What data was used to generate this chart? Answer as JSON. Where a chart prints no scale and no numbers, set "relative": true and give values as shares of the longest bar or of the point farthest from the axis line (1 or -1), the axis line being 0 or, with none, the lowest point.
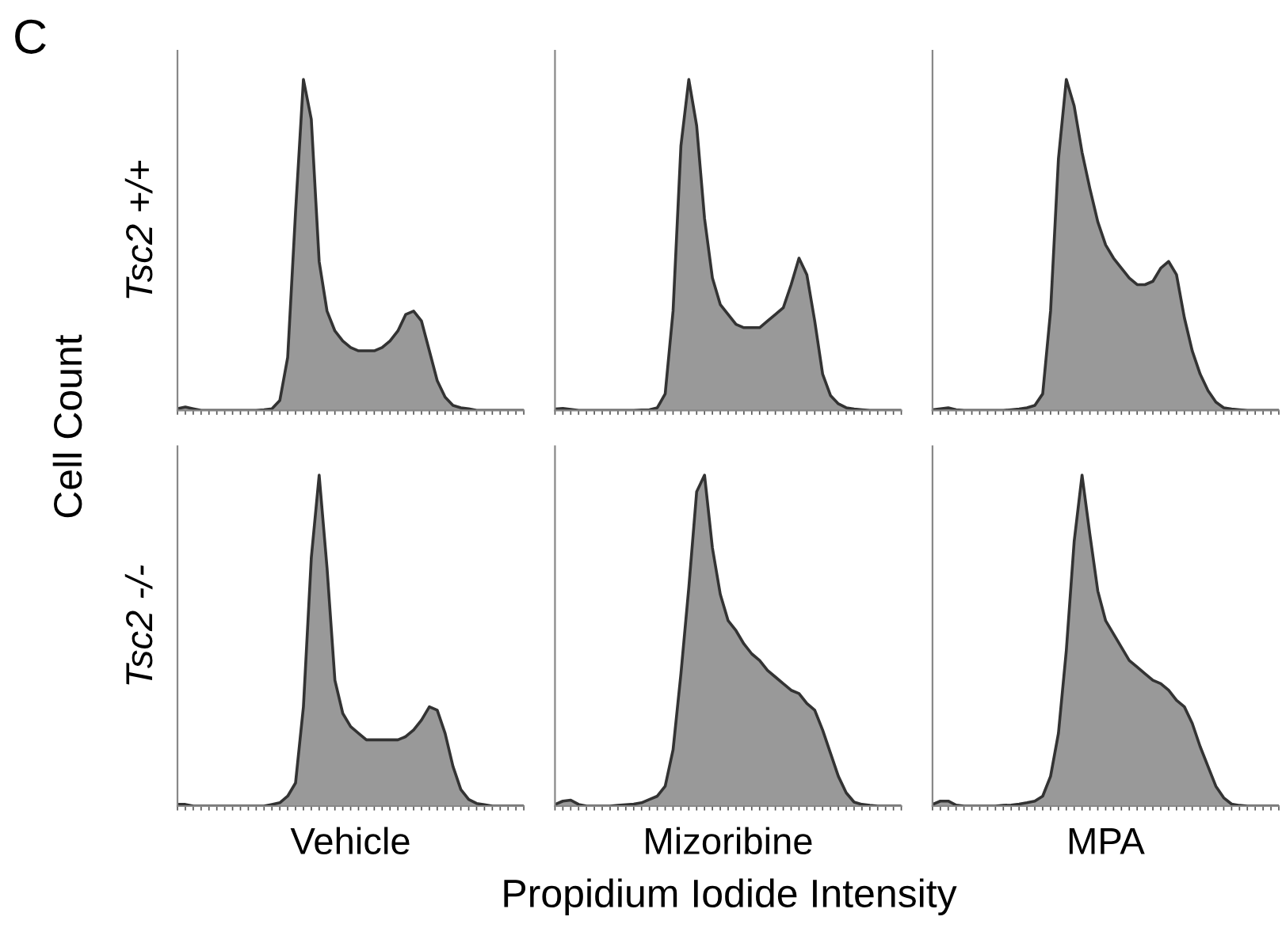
{
  "chart_data": [
    {
      "type": "area",
      "relative": true,
      "ylabel": "Tsc2 +/+",
      "color": "#999999",
      "annotations": [
        "C",
        "Cell Count",
        "Propidium Iodide Intensity"
      ],
      "categories": [
        null,
        null,
        null,
        null,
        null,
        null,
        null,
        null,
        null,
        null,
        null,
        null,
        null,
        null,
        null,
        null,
        null,
        null,
        null,
        null,
        null,
        null,
        null,
        null,
        null,
        null,
        null,
        null,
        null,
        null,
        null,
        null,
        null,
        null,
        null,
        null,
        null,
        null,
        null,
        null,
        null,
        null,
        null,
        null,
        null
      ],
      "values": [
        0.005,
        0.01,
        0.005,
        0,
        0,
        0,
        0,
        0,
        0,
        0,
        0,
        0.002,
        0.005,
        0.03,
        0.16,
        0.6,
        1,
        0.88,
        0.45,
        0.3,
        0.24,
        0.21,
        0.19,
        0.18,
        0.18,
        0.18,
        0.19,
        0.21,
        0.24,
        0.29,
        0.3,
        0.27,
        0.18,
        0.09,
        0.04,
        0.015,
        0.008,
        0.005,
        0,
        0,
        0,
        0,
        0,
        0,
        0
      ]
    },
    {
      "type": "area",
      "relative": true,
      "color": "#999999",
      "categories": [
        null,
        null,
        null,
        null,
        null,
        null,
        null,
        null,
        null,
        null,
        null,
        null,
        null,
        null,
        null,
        null,
        null,
        null,
        null,
        null,
        null,
        null,
        null,
        null,
        null,
        null,
        null,
        null,
        null,
        null,
        null,
        null,
        null,
        null,
        null,
        null,
        null,
        null,
        null,
        null,
        null,
        null,
        null,
        null,
        null
      ],
      "values": [
        0.004,
        0.006,
        0.003,
        0,
        0,
        0,
        0,
        0,
        0,
        0,
        0,
        0.001,
        0.002,
        0.008,
        0.05,
        0.3,
        0.8,
        1,
        0.86,
        0.58,
        0.4,
        0.32,
        0.29,
        0.26,
        0.25,
        0.25,
        0.25,
        0.27,
        0.29,
        0.31,
        0.38,
        0.46,
        0.41,
        0.27,
        0.11,
        0.045,
        0.02,
        0.008,
        0.004,
        0.002,
        0,
        0,
        0,
        0,
        0
      ]
    },
    {
      "type": "area",
      "relative": true,
      "color": "#999999",
      "categories": [
        null,
        null,
        null,
        null,
        null,
        null,
        null,
        null,
        null,
        null,
        null,
        null,
        null,
        null,
        null,
        null,
        null,
        null,
        null,
        null,
        null,
        null,
        null,
        null,
        null,
        null,
        null,
        null,
        null,
        null,
        null,
        null,
        null,
        null,
        null,
        null,
        null,
        null,
        null,
        null,
        null,
        null,
        null,
        null,
        null
      ],
      "values": [
        0.002,
        0.005,
        0.008,
        0.002,
        0,
        0,
        0,
        0,
        0,
        0,
        0.002,
        0.004,
        0.008,
        0.015,
        0.05,
        0.3,
        0.76,
        1,
        0.92,
        0.78,
        0.67,
        0.57,
        0.5,
        0.46,
        0.43,
        0.4,
        0.38,
        0.38,
        0.39,
        0.43,
        0.45,
        0.41,
        0.28,
        0.18,
        0.11,
        0.06,
        0.025,
        0.008,
        0.004,
        0.002,
        0,
        0,
        0,
        0,
        0
      ]
    },
    {
      "type": "area",
      "relative": true,
      "ylabel": "Tsc2 -/-",
      "xlabel": "Vehicle",
      "color": "#999999",
      "categories": [
        null,
        null,
        null,
        null,
        null,
        null,
        null,
        null,
        null,
        null,
        null,
        null,
        null,
        null,
        null,
        null,
        null,
        null,
        null,
        null,
        null,
        null,
        null,
        null,
        null,
        null,
        null,
        null,
        null,
        null,
        null,
        null,
        null,
        null,
        null,
        null,
        null,
        null,
        null,
        null,
        null,
        null,
        null,
        null,
        null
      ],
      "values": [
        0.005,
        0.005,
        0,
        0,
        0,
        0,
        0,
        0,
        0,
        0,
        0,
        0,
        0.005,
        0.01,
        0.03,
        0.07,
        0.3,
        0.75,
        1,
        0.72,
        0.38,
        0.28,
        0.24,
        0.22,
        0.2,
        0.2,
        0.2,
        0.2,
        0.2,
        0.21,
        0.23,
        0.26,
        0.3,
        0.29,
        0.22,
        0.12,
        0.05,
        0.02,
        0.008,
        0.004,
        0,
        0,
        0,
        0,
        0
      ]
    },
    {
      "type": "area",
      "relative": true,
      "xlabel": "Mizoribine",
      "color": "#999999",
      "categories": [
        null,
        null,
        null,
        null,
        null,
        null,
        null,
        null,
        null,
        null,
        null,
        null,
        null,
        null,
        null,
        null,
        null,
        null,
        null,
        null,
        null,
        null,
        null,
        null,
        null,
        null,
        null,
        null,
        null,
        null,
        null,
        null,
        null,
        null,
        null,
        null,
        null,
        null,
        null,
        null,
        null,
        null,
        null,
        null,
        null
      ],
      "values": [
        0.005,
        0.015,
        0.018,
        0.005,
        0,
        0,
        0,
        0,
        0.002,
        0.004,
        0.006,
        0.01,
        0.02,
        0.03,
        0.06,
        0.17,
        0.4,
        0.66,
        0.95,
        1,
        0.78,
        0.64,
        0.56,
        0.53,
        0.49,
        0.46,
        0.44,
        0.41,
        0.39,
        0.37,
        0.35,
        0.34,
        0.31,
        0.29,
        0.23,
        0.16,
        0.09,
        0.04,
        0.012,
        0.005,
        0.002,
        0,
        0,
        0,
        0
      ]
    },
    {
      "type": "area",
      "relative": true,
      "xlabel": "MPA",
      "color": "#999999",
      "categories": [
        null,
        null,
        null,
        null,
        null,
        null,
        null,
        null,
        null,
        null,
        null,
        null,
        null,
        null,
        null,
        null,
        null,
        null,
        null,
        null,
        null,
        null,
        null,
        null,
        null,
        null,
        null,
        null,
        null,
        null,
        null,
        null,
        null,
        null,
        null,
        null,
        null,
        null,
        null,
        null,
        null,
        null,
        null,
        null,
        null
      ],
      "values": [
        0.005,
        0.015,
        0.015,
        0.003,
        0,
        0,
        0,
        0,
        0,
        0.002,
        0.003,
        0.006,
        0.01,
        0.015,
        0.03,
        0.09,
        0.22,
        0.47,
        0.8,
        1,
        0.82,
        0.65,
        0.56,
        0.52,
        0.48,
        0.44,
        0.42,
        0.4,
        0.38,
        0.37,
        0.35,
        0.32,
        0.3,
        0.25,
        0.18,
        0.12,
        0.06,
        0.025,
        0.006,
        0.002,
        0,
        0,
        0,
        0,
        0
      ]
    }
  ]
}
